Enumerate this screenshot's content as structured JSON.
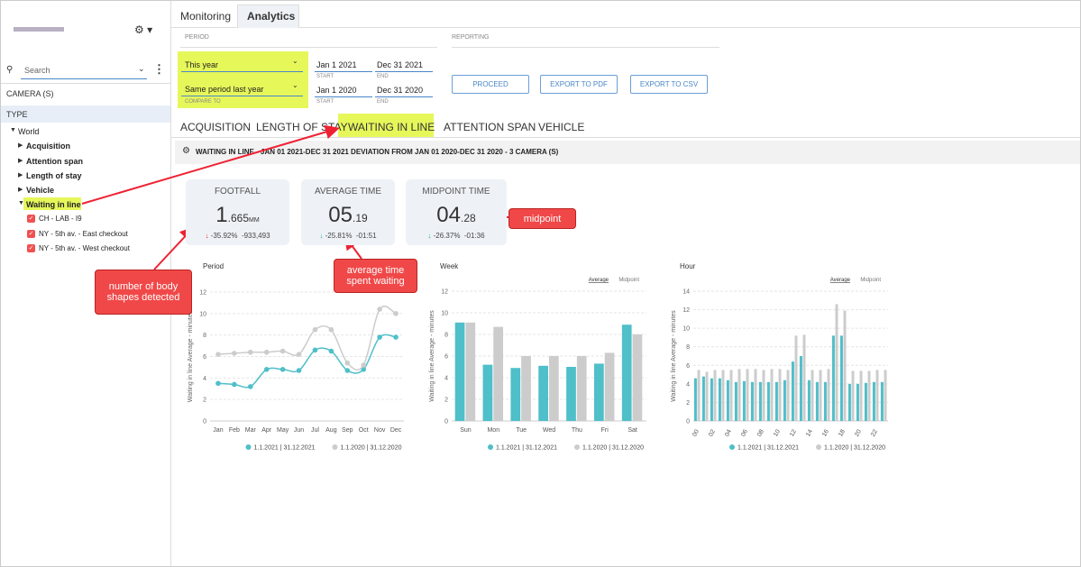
{
  "sidebar": {
    "search": "Search",
    "camera_label": "CAMERA (S)",
    "type_label": "TYPE",
    "tree": [
      "World",
      "Acquisition",
      "Attention span",
      "Length of stay",
      "Vehicle",
      "Waiting in line"
    ],
    "cameras": [
      "CH - LAB - I9",
      "NY - 5th av. - East checkout",
      "NY - 5th av. - West checkout"
    ]
  },
  "top_tabs": [
    "Monitoring",
    "Analytics"
  ],
  "period": {
    "label": "PERIOD",
    "reporting_label": "REPORTING",
    "range": "This year",
    "compare": "Same period last year",
    "compare_label": "COMPARE TO",
    "start1": "Jan 1 2021",
    "end1": "Dec 31 2021",
    "start2": "Jan 1 2020",
    "end2": "Dec 31 2020",
    "start_label": "START",
    "end_label": "END"
  },
  "buttons": [
    "PROCEED",
    "EXPORT TO PDF",
    "EXPORT TO CSV"
  ],
  "sub_tabs": [
    "ACQUISITION",
    "LENGTH OF STAY",
    "WAITING IN LINE",
    "ATTENTION SPAN",
    "VEHICLE"
  ],
  "header": "WAITING IN LINE - JAN 01 2021-DEC 31 2021 DEVIATION FROM JAN 01 2020-DEC 31 2020 - 3 CAMERA (S)",
  "kpis": [
    {
      "title": "FOOTFALL",
      "main": "1",
      "fraction": ".665",
      "unit": "MM",
      "change": "-35.92%",
      "delta": "-933,493"
    },
    {
      "title": "AVERAGE TIME",
      "main": "05",
      "fraction": ".19",
      "change": "-25.81%",
      "delta": "-01:51"
    },
    {
      "title": "MIDPOINT TIME",
      "main": "04",
      "fraction": ".28",
      "change": "-26.37%",
      "delta": "-01:36"
    }
  ],
  "annotations": [
    "number of body shapes detected",
    "average time spent waiting",
    "midpoint"
  ],
  "chart_data": [
    {
      "type": "line",
      "title": "Period",
      "ylabel": "Waiting in line Average - minutes",
      "categories": [
        "Jan",
        "Feb",
        "Mar",
        "Apr",
        "May",
        "Jun",
        "Jul",
        "Aug",
        "Sep",
        "Oct",
        "Nov",
        "Dec"
      ],
      "series": [
        {
          "name": "1.1.2021 | 31.12.2021",
          "color": "#4fbfc9",
          "values": [
            3.5,
            3.4,
            3.2,
            4.8,
            4.8,
            4.7,
            6.6,
            6.5,
            4.7,
            4.8,
            7.8,
            7.8
          ]
        },
        {
          "name": "1.1.2020 | 31.12.2020",
          "color": "#cccccc",
          "values": [
            6.2,
            6.3,
            6.4,
            6.4,
            6.5,
            6.2,
            8.5,
            8.5,
            5.4,
            5.2,
            10.4,
            10.0
          ]
        }
      ],
      "ylim": [
        0,
        12
      ],
      "yticks": [
        0,
        2,
        4,
        6,
        8,
        10,
        12
      ],
      "grid": true
    },
    {
      "type": "bar",
      "title": "Week",
      "ylabel": "Waiting in line Average - minutes",
      "toggles": [
        "Average",
        "Midpoint"
      ],
      "categories": [
        "Sun",
        "Mon",
        "Tue",
        "Wed",
        "Thu",
        "Fri",
        "Sat"
      ],
      "series": [
        {
          "name": "1.1.2021 | 31.12.2021",
          "color": "#4fbfc9",
          "values": [
            9.1,
            5.2,
            4.9,
            5.1,
            5.0,
            5.3,
            8.9
          ]
        },
        {
          "name": "1.1.2020 | 31.12.2020",
          "color": "#cccccc",
          "values": [
            9.1,
            8.7,
            6.0,
            6.0,
            6.0,
            6.3,
            8.0
          ]
        }
      ],
      "ylim": [
        0,
        12
      ],
      "yticks": [
        0,
        2,
        4,
        6,
        8,
        10,
        12
      ],
      "grid": true
    },
    {
      "type": "bar",
      "title": "Hour",
      "ylabel": "Waiting in line Average - minutes",
      "toggles": [
        "Average",
        "Midpoint"
      ],
      "categories": [
        "00",
        null,
        "02",
        null,
        "04",
        null,
        "06",
        null,
        "08",
        null,
        "10",
        null,
        "12",
        null,
        "14",
        null,
        "16",
        null,
        "18",
        null,
        "20",
        null,
        "22",
        null
      ],
      "series": [
        {
          "name": "1.1.2021 | 31.12.2021",
          "color": "#4fbfc9",
          "values": [
            4.6,
            4.8,
            4.6,
            4.6,
            4.4,
            4.2,
            4.3,
            4.2,
            4.2,
            4.2,
            4.2,
            4.4,
            6.4,
            7.0,
            4.4,
            4.2,
            4.2,
            9.2,
            9.2,
            4.0,
            4.0,
            4.1,
            4.2,
            4.2
          ]
        },
        {
          "name": "1.1.2020 | 31.12.2020",
          "color": "#cccccc",
          "values": [
            5.5,
            5.3,
            5.5,
            5.5,
            5.5,
            5.6,
            5.6,
            5.6,
            5.5,
            5.6,
            5.6,
            5.5,
            9.2,
            9.3,
            5.5,
            5.5,
            5.6,
            12.6,
            11.9,
            5.4,
            5.4,
            5.4,
            5.5,
            5.5
          ]
        }
      ],
      "ylim": [
        0,
        14
      ],
      "yticks": [
        0,
        2,
        4,
        6,
        8,
        10,
        12,
        14
      ],
      "grid": true
    }
  ]
}
